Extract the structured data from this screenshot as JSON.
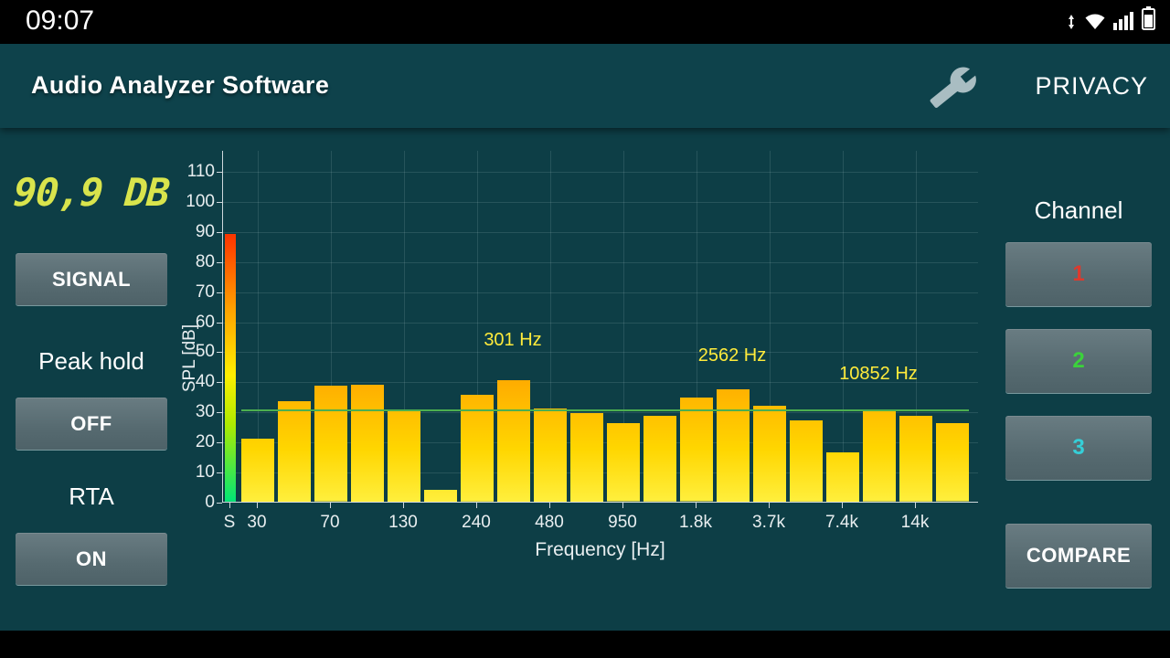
{
  "status_bar": {
    "time": "09:07"
  },
  "header": {
    "title": "Audio Analyzer Software",
    "privacy_label": "PRIVACY"
  },
  "left_panel": {
    "spl_readout": "90,9 DB",
    "signal_button_label": "SIGNAL",
    "peak_hold_label": "Peak hold",
    "peak_hold_state": "OFF",
    "rta_label": "RTA",
    "rta_state": "ON"
  },
  "right_panel": {
    "channel_label": "Channel",
    "channels": [
      {
        "label": "1",
        "color": "#dd3a2e"
      },
      {
        "label": "2",
        "color": "#3bd23b"
      },
      {
        "label": "3",
        "color": "#35cfd8"
      }
    ],
    "compare_button_label": "COMPARE"
  },
  "chart_data": {
    "type": "bar",
    "title": "",
    "ylabel": "SPL [dB]",
    "xlabel": "Frequency [Hz]",
    "ylim": [
      0,
      117
    ],
    "yticks": [
      0,
      10,
      20,
      30,
      40,
      50,
      60,
      70,
      80,
      90,
      100,
      110
    ],
    "x_tick_labels": [
      "S",
      "30",
      "70",
      "130",
      "240",
      "480",
      "950",
      "1.8k",
      "3.7k",
      "7.4k",
      "14k"
    ],
    "signal_bar": {
      "label": "S",
      "value_db": 89
    },
    "values_db": [
      21,
      33.5,
      38.5,
      39,
      30.5,
      4,
      35.5,
      40.5,
      31,
      29.5,
      26,
      28.5,
      34.5,
      37.5,
      32,
      27,
      16.5,
      30,
      28.5,
      26
    ],
    "peak_line_db": 30,
    "annotations": [
      {
        "text": "301 Hz",
        "bar_index": 7,
        "label_db": 50
      },
      {
        "text": "2562 Hz",
        "bar_index": 13,
        "label_db": 45
      },
      {
        "text": "10852 Hz",
        "bar_index": 17,
        "label_db": 39
      }
    ],
    "grid": true,
    "legend": false
  },
  "colors": {
    "background": "#0d3e46",
    "status_bar": "#000000",
    "button": "#5b6e74",
    "readout": "#d9e44c",
    "annotation": "#ffeb3b",
    "peak_line": "#4caf50",
    "axis_text": "#e8eef0"
  }
}
